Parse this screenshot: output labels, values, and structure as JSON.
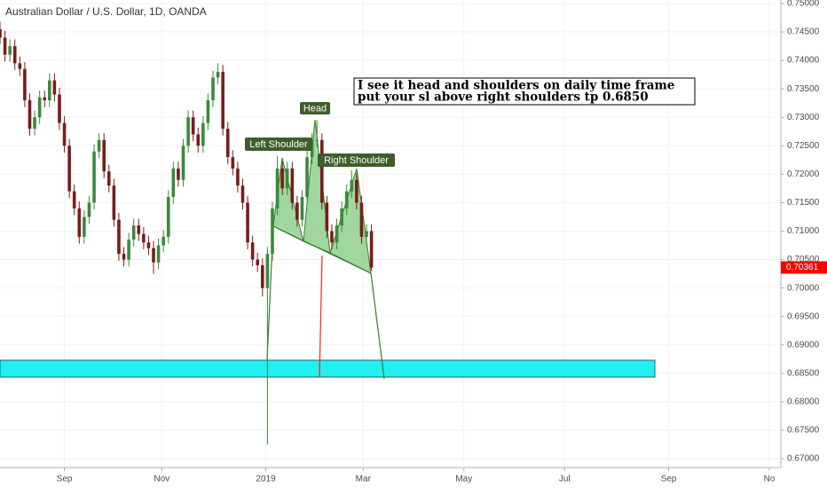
{
  "chart_data": {
    "type": "candlestick",
    "title": "Australian Dollar / U.S. Dollar, 1D, OANDA",
    "x": [
      0,
      3,
      6,
      9,
      12,
      15,
      18,
      21,
      24,
      27,
      30,
      33,
      36,
      39,
      42,
      45,
      48,
      51,
      54,
      57,
      60,
      63,
      66,
      69,
      72,
      75,
      78,
      81,
      84,
      87,
      90,
      93,
      96,
      99,
      102,
      105,
      108,
      111,
      114,
      117,
      120,
      123,
      126,
      129,
      132,
      135,
      138,
      141,
      144,
      147,
      150,
      153,
      156,
      159,
      162,
      165,
      168,
      171,
      174,
      177,
      180,
      183,
      186,
      189,
      192,
      195,
      198,
      201,
      204,
      207,
      210,
      213,
      216,
      219,
      222,
      225
    ],
    "open": [
      0.7455,
      0.744,
      0.741,
      0.7425,
      0.7395,
      0.7385,
      0.733,
      0.728,
      0.73,
      0.7335,
      0.733,
      0.7365,
      0.734,
      0.729,
      0.725,
      0.717,
      0.714,
      0.709,
      0.7125,
      0.715,
      0.724,
      0.726,
      0.7205,
      0.718,
      0.712,
      0.706,
      0.705,
      0.7085,
      0.711,
      0.7095,
      0.708,
      0.707,
      0.7045,
      0.7075,
      0.709,
      0.716,
      0.721,
      0.719,
      0.725,
      0.73,
      0.727,
      0.725,
      0.729,
      0.733,
      0.737,
      0.738,
      0.728,
      0.723,
      0.721,
      0.718,
      0.715,
      0.708,
      0.705,
      0.704,
      0.7,
      0.706,
      0.714,
      0.721,
      0.7175,
      0.721,
      0.715,
      0.712,
      0.716,
      0.723,
      0.726,
      0.726,
      0.715,
      0.71,
      0.708,
      0.711,
      0.714,
      0.717,
      0.719,
      0.715,
      0.709,
      0.71
    ],
    "high": [
      0.7468,
      0.7452,
      0.7437,
      0.7437,
      0.7407,
      0.7397,
      0.7342,
      0.7312,
      0.7347,
      0.7347,
      0.7377,
      0.7377,
      0.7352,
      0.7302,
      0.7262,
      0.7182,
      0.7152,
      0.7137,
      0.7162,
      0.7252,
      0.7272,
      0.7272,
      0.7217,
      0.7192,
      0.7132,
      0.7072,
      0.7097,
      0.7122,
      0.7122,
      0.7107,
      0.7092,
      0.7082,
      0.7087,
      0.7102,
      0.7172,
      0.7222,
      0.7222,
      0.7262,
      0.7312,
      0.7312,
      0.7282,
      0.7302,
      0.7342,
      0.7382,
      0.7395,
      0.7392,
      0.7292,
      0.7242,
      0.7222,
      0.7192,
      0.7162,
      0.7092,
      0.7062,
      0.7052,
      0.7072,
      0.7152,
      0.7232,
      0.7222,
      0.7222,
      0.7222,
      0.7162,
      0.7172,
      0.7242,
      0.7272,
      0.7295,
      0.7272,
      0.7162,
      0.7112,
      0.7122,
      0.7152,
      0.7182,
      0.7207,
      0.7202,
      0.7162,
      0.7112,
      0.7112
    ],
    "low": [
      0.7428,
      0.7398,
      0.7398,
      0.7383,
      0.7373,
      0.7318,
      0.7268,
      0.7268,
      0.7288,
      0.7318,
      0.7318,
      0.7328,
      0.7278,
      0.7238,
      0.7158,
      0.7128,
      0.7078,
      0.7078,
      0.7113,
      0.7138,
      0.7228,
      0.7193,
      0.7168,
      0.7108,
      0.7048,
      0.7038,
      0.7038,
      0.7073,
      0.7083,
      0.7068,
      0.7058,
      0.7025,
      0.7033,
      0.7063,
      0.7078,
      0.7148,
      0.7178,
      0.7178,
      0.7238,
      0.7258,
      0.7238,
      0.7238,
      0.7278,
      0.7318,
      0.7358,
      0.7268,
      0.7218,
      0.7198,
      0.7168,
      0.7138,
      0.7068,
      0.7038,
      0.7028,
      0.6985,
      0.6725,
      0.7048,
      0.7128,
      0.7163,
      0.7163,
      0.7138,
      0.7108,
      0.7108,
      0.7148,
      0.7218,
      0.7248,
      0.7138,
      0.7088,
      0.7068,
      0.7068,
      0.7098,
      0.7128,
      0.7158,
      0.7138,
      0.7078,
      0.7078,
      0.703
    ],
    "close": [
      0.744,
      0.741,
      0.7425,
      0.7395,
      0.7385,
      0.733,
      0.728,
      0.73,
      0.7335,
      0.733,
      0.7365,
      0.734,
      0.729,
      0.725,
      0.717,
      0.714,
      0.709,
      0.7125,
      0.715,
      0.724,
      0.726,
      0.7205,
      0.718,
      0.712,
      0.706,
      0.705,
      0.7085,
      0.711,
      0.7095,
      0.708,
      0.707,
      0.7045,
      0.7075,
      0.709,
      0.716,
      0.721,
      0.719,
      0.725,
      0.73,
      0.727,
      0.725,
      0.729,
      0.733,
      0.737,
      0.738,
      0.728,
      0.723,
      0.721,
      0.718,
      0.715,
      0.708,
      0.705,
      0.704,
      0.7,
      0.706,
      0.714,
      0.721,
      0.7175,
      0.721,
      0.715,
      0.712,
      0.716,
      0.723,
      0.726,
      0.726,
      0.715,
      0.71,
      0.708,
      0.711,
      0.714,
      0.717,
      0.719,
      0.715,
      0.709,
      0.71,
      0.7036
    ],
    "up_color": "#3a8a3a",
    "down_color": "#7a1c1c",
    "xlim": [
      0,
      473
    ],
    "xticks": [
      {
        "value": 39,
        "label": "Sep"
      },
      {
        "value": 98,
        "label": "Nov"
      },
      {
        "value": 161,
        "label": "2019"
      },
      {
        "value": 220,
        "label": "Mar"
      },
      {
        "value": 281,
        "label": "May"
      },
      {
        "value": 342,
        "label": "Jul"
      },
      {
        "value": 405,
        "label": "Sep"
      },
      {
        "value": 466,
        "label": "No"
      }
    ],
    "ylim": [
      0.66844,
      0.75062
    ],
    "yticks": [
      {
        "value": 0.67,
        "label": "0.67000"
      },
      {
        "value": 0.675,
        "label": "0.67500"
      },
      {
        "value": 0.68,
        "label": "0.68000"
      },
      {
        "value": 0.685,
        "label": "0.68500"
      },
      {
        "value": 0.69,
        "label": "0.69000"
      },
      {
        "value": 0.695,
        "label": "0.69500"
      },
      {
        "value": 0.7,
        "label": "0.70000"
      },
      {
        "value": 0.705,
        "label": "0.70500"
      },
      {
        "value": 0.71,
        "label": "0.71000"
      },
      {
        "value": 0.715,
        "label": "0.71500"
      },
      {
        "value": 0.72,
        "label": "0.72000"
      },
      {
        "value": 0.725,
        "label": "0.72500"
      },
      {
        "value": 0.73,
        "label": "0.73000"
      },
      {
        "value": 0.735,
        "label": "0.73500"
      },
      {
        "value": 0.74,
        "label": "0.74000"
      },
      {
        "value": 0.745,
        "label": "0.74500"
      },
      {
        "value": 0.75,
        "label": "0.75000"
      }
    ],
    "grid": true,
    "last_price": 0.70361,
    "last_price_color": "#ff0000",
    "annotations": {
      "note_lines": [
        "I see it head and shoulders on daily time frame",
        "put your sl above right shoulders  tp 0.6850"
      ],
      "head": "Head",
      "left_shoulder": "Left Shoulder",
      "right_shoulder": "Right Shoulder"
    }
  }
}
